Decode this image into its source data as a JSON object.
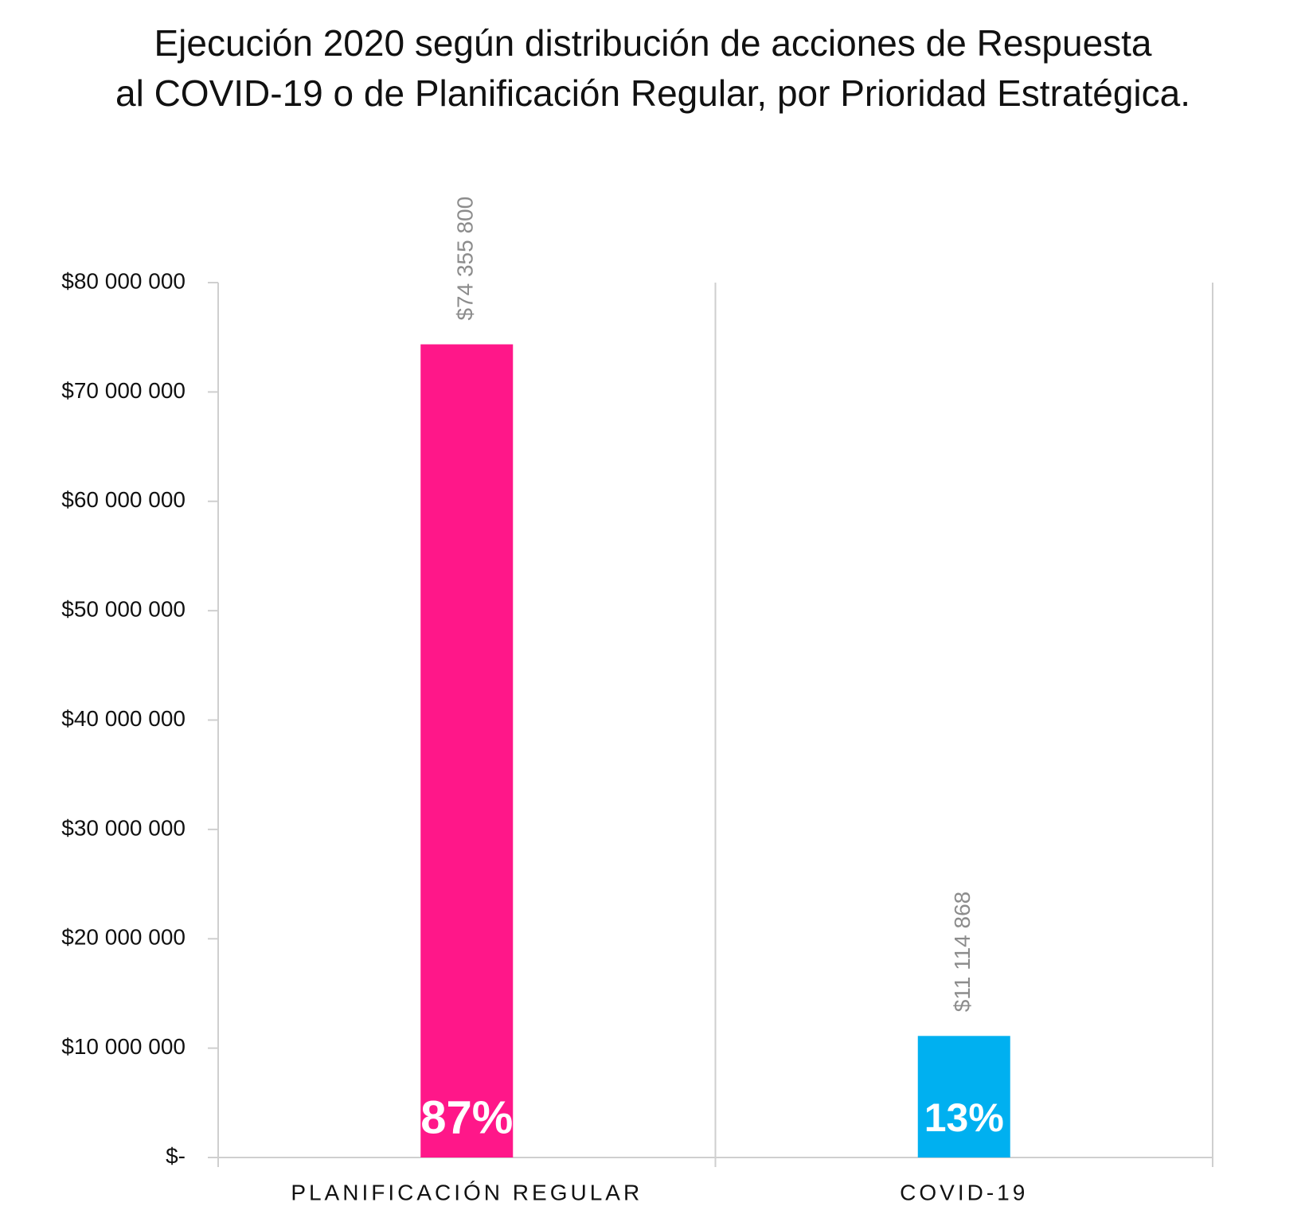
{
  "chart_data": {
    "type": "bar",
    "title": [
      "Ejecución 2020 según distribución de acciones de Respuesta",
      "al COVID-19 o de Planificación Regular, por Prioridad Estratégica."
    ],
    "categories": [
      "PLANIFICACIÓN REGULAR",
      "COVID-19"
    ],
    "values": [
      74355800,
      11114868
    ],
    "value_labels": [
      "$74 355 800",
      "$11 114 868"
    ],
    "percent_labels": [
      "87%",
      "13%"
    ],
    "colors": [
      "#ff1789",
      "#00b0f0"
    ],
    "ylim": [
      0,
      80000000
    ],
    "yticks": [
      {
        "value": 0,
        "label": "$-"
      },
      {
        "value": 10000000,
        "label": "$10 000 000"
      },
      {
        "value": 20000000,
        "label": "$20 000 000"
      },
      {
        "value": 30000000,
        "label": "$30 000 000"
      },
      {
        "value": 40000000,
        "label": "$40 000 000"
      },
      {
        "value": 50000000,
        "label": "$50 000 000"
      },
      {
        "value": 60000000,
        "label": "$60 000 000"
      },
      {
        "value": 70000000,
        "label": "$70 000 000"
      },
      {
        "value": 80000000,
        "label": "$80 000 000"
      }
    ],
    "grid": false
  }
}
